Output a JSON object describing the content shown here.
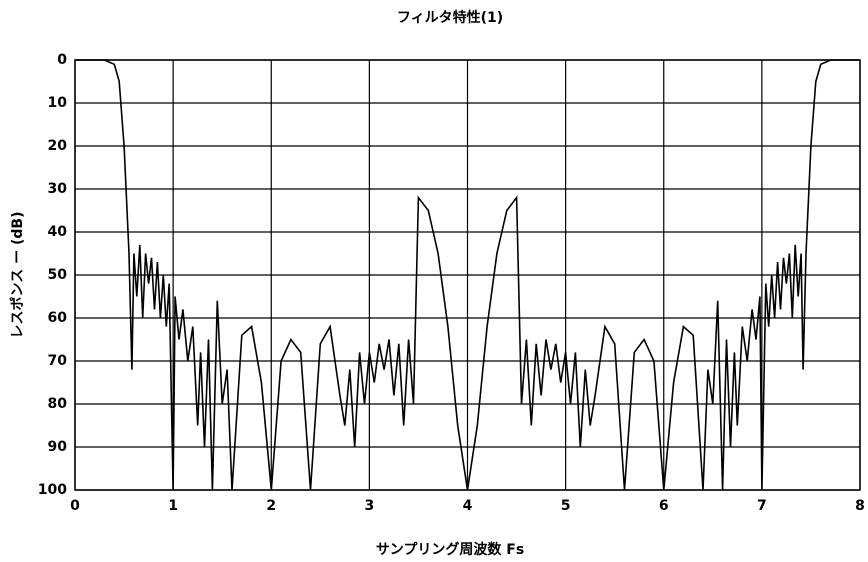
{
  "chart_data": {
    "type": "line",
    "title": "フィルタ特性(1)",
    "xlabel": "サンプリング周波数 Fs",
    "ylabel": "レスポンス ー (dB)",
    "xlim": [
      0,
      8
    ],
    "xticks": [
      0,
      1,
      2,
      3,
      4,
      5,
      6,
      7,
      8
    ],
    "ylim": [
      100,
      0
    ],
    "yticks": [
      0,
      10,
      20,
      30,
      40,
      50,
      60,
      70,
      80,
      90,
      100
    ],
    "grid": true,
    "series": [
      {
        "color": "#000000",
        "x": [
          0,
          0.3,
          0.4,
          0.45,
          0.5,
          0.55,
          0.58,
          0.6,
          0.63,
          0.66,
          0.69,
          0.72,
          0.75,
          0.78,
          0.81,
          0.84,
          0.87,
          0.9,
          0.93,
          0.96,
          1.0,
          1.02,
          1.06,
          1.1,
          1.15,
          1.2,
          1.25,
          1.28,
          1.32,
          1.36,
          1.4,
          1.45,
          1.5,
          1.55,
          1.6,
          1.7,
          1.8,
          1.9,
          2.0,
          2.1,
          2.2,
          2.3,
          2.4,
          2.5,
          2.6,
          2.7,
          2.75,
          2.8,
          2.85,
          2.9,
          2.95,
          3.0,
          3.05,
          3.1,
          3.15,
          3.2,
          3.25,
          3.3,
          3.35,
          3.4,
          3.45,
          3.5,
          3.6,
          3.7,
          3.8,
          3.9,
          4.0,
          4.1,
          4.2,
          4.3,
          4.4,
          4.5,
          4.55,
          4.6,
          4.65,
          4.7,
          4.75,
          4.8,
          4.85,
          4.9,
          4.95,
          5.0,
          5.05,
          5.1,
          5.15,
          5.2,
          5.25,
          5.3,
          5.4,
          5.5,
          5.6,
          5.7,
          5.8,
          5.9,
          6.0,
          6.1,
          6.2,
          6.3,
          6.4,
          6.45,
          6.5,
          6.55,
          6.6,
          6.64,
          6.68,
          6.72,
          6.75,
          6.8,
          6.85,
          6.9,
          6.94,
          6.98,
          7.0,
          7.04,
          7.07,
          7.1,
          7.13,
          7.16,
          7.19,
          7.22,
          7.25,
          7.28,
          7.31,
          7.34,
          7.37,
          7.4,
          7.42,
          7.45,
          7.5,
          7.55,
          7.6,
          7.7,
          8.0
        ],
        "values": [
          0,
          0,
          1,
          5,
          20,
          45,
          72,
          45,
          55,
          43,
          60,
          45,
          52,
          46,
          58,
          47,
          60,
          50,
          62,
          52,
          100,
          55,
          65,
          58,
          70,
          62,
          85,
          68,
          90,
          65,
          100,
          56,
          80,
          72,
          100,
          64,
          62,
          75,
          100,
          70,
          65,
          68,
          100,
          66,
          62,
          78,
          85,
          72,
          90,
          68,
          80,
          68,
          75,
          66,
          72,
          65,
          78,
          66,
          85,
          65,
          80,
          32,
          35,
          45,
          62,
          85,
          100,
          85,
          62,
          45,
          35,
          32,
          80,
          65,
          85,
          66,
          78,
          65,
          72,
          66,
          75,
          68,
          80,
          68,
          90,
          72,
          85,
          78,
          62,
          66,
          100,
          68,
          65,
          70,
          100,
          75,
          62,
          64,
          100,
          72,
          80,
          56,
          100,
          65,
          90,
          68,
          85,
          62,
          70,
          58,
          65,
          55,
          100,
          52,
          62,
          50,
          60,
          47,
          58,
          46,
          52,
          45,
          60,
          43,
          55,
          45,
          72,
          45,
          20,
          5,
          1,
          0,
          0
        ]
      }
    ]
  }
}
